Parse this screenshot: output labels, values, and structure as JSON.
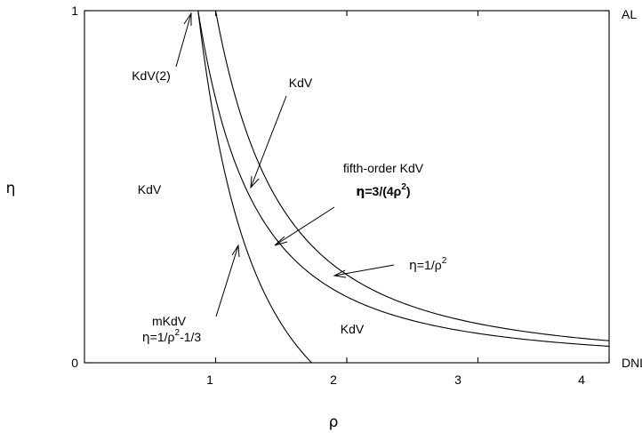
{
  "chart_data": {
    "type": "line",
    "xlabel": "ρ",
    "ylabel": "η",
    "xlim": [
      0,
      4
    ],
    "ylim": [
      0,
      1
    ],
    "x_ticks": [
      "1",
      "2",
      "3",
      "4"
    ],
    "y_ticks": [
      "0",
      "1"
    ],
    "grid": false,
    "right_labels": {
      "top": "AL",
      "bottom": "DNLS"
    },
    "series": [
      {
        "formula": "1/rho^2 - 1/3",
        "x_range": [
          0.866,
          1.732
        ]
      },
      {
        "formula": "3/(4 rho^2)",
        "x_range": [
          0.866,
          4
        ]
      },
      {
        "formula": "1/rho^2",
        "x_range": [
          1.0,
          4
        ]
      }
    ],
    "annotations": {
      "kdv2": "KdV(2)",
      "kdv_left": "KdV",
      "kdv_top": "KdV",
      "kdv_bottom": "KdV",
      "fifth_line1": "fifth-order KdV",
      "fifth_line2": {
        "eta": "η",
        "rest": "=3/(4ρ",
        "exp": "2",
        "close": ")"
      },
      "eta_rho2": {
        "eta": "η",
        "rest": "=1/ρ",
        "exp": "2"
      },
      "mkdv_line1": "mKdV",
      "mkdv_line2": {
        "eta": "η",
        "rest": "=1/ρ",
        "exp": "2",
        "tail": "-1/3"
      }
    }
  }
}
